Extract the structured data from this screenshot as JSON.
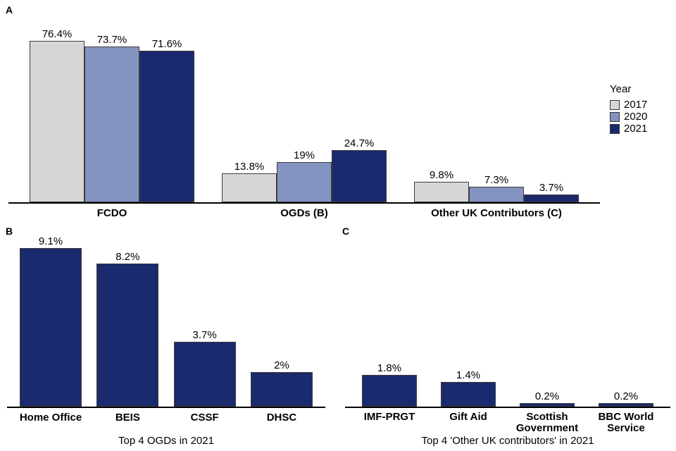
{
  "panels": {
    "a": {
      "label": "A"
    },
    "b": {
      "label": "B"
    },
    "c": {
      "label": "C"
    }
  },
  "legend": {
    "title": "Year",
    "entries": [
      {
        "label": "2017",
        "color": "#d6d6d6"
      },
      {
        "label": "2020",
        "color": "#8494c2"
      },
      {
        "label": "2021",
        "color": "#1a2a6e"
      }
    ]
  },
  "chart_data": [
    {
      "type": "bar",
      "panel": "A",
      "grouping": "grouped",
      "categories": [
        "FCDO",
        "OGDs (B)",
        "Other UK Contributors (C)"
      ],
      "series": [
        {
          "name": "2017",
          "color": "#d6d6d6",
          "values": [
            76.4,
            13.8,
            9.8
          ],
          "labels": [
            "76.4%",
            "13.8%",
            "9.8%"
          ]
        },
        {
          "name": "2020",
          "color": "#8494c2",
          "values": [
            73.7,
            19,
            7.3
          ],
          "labels": [
            "73.7%",
            "19%",
            "7.3%"
          ]
        },
        {
          "name": "2021",
          "color": "#1a2a6e",
          "values": [
            71.6,
            24.7,
            3.7
          ],
          "labels": [
            "71.6%",
            "24.7%",
            "3.7%"
          ]
        }
      ],
      "title": "",
      "xlabel": "",
      "ylabel": "",
      "ylim": [
        0,
        80
      ],
      "legend_title": "Year",
      "legend_position": "right",
      "grid": false,
      "value_labels_shown": true
    },
    {
      "type": "bar",
      "panel": "B",
      "categories": [
        "Home Office",
        "BEIS",
        "CSSF",
        "DHSC"
      ],
      "values": [
        9.1,
        8.2,
        3.7,
        2
      ],
      "labels": [
        "9.1%",
        "8.2%",
        "3.7%",
        "2%"
      ],
      "title": "Top 4 OGDs in 2021",
      "bar_color": "#1a2a6e",
      "ylim": [
        0,
        9.5
      ],
      "grid": false,
      "value_labels_shown": true
    },
    {
      "type": "bar",
      "panel": "C",
      "categories": [
        "IMF-PRGT",
        "Gift Aid",
        "Scottish Government",
        "BBC World Service"
      ],
      "values": [
        1.8,
        1.4,
        0.2,
        0.2
      ],
      "labels": [
        "1.8%",
        "1.4%",
        "0.2%",
        "0.2%"
      ],
      "title": "Top 4 'Other UK contributors' in 2021",
      "bar_color": "#1a2a6e",
      "ylim": [
        0,
        9.5
      ],
      "grid": false,
      "value_labels_shown": true
    }
  ]
}
